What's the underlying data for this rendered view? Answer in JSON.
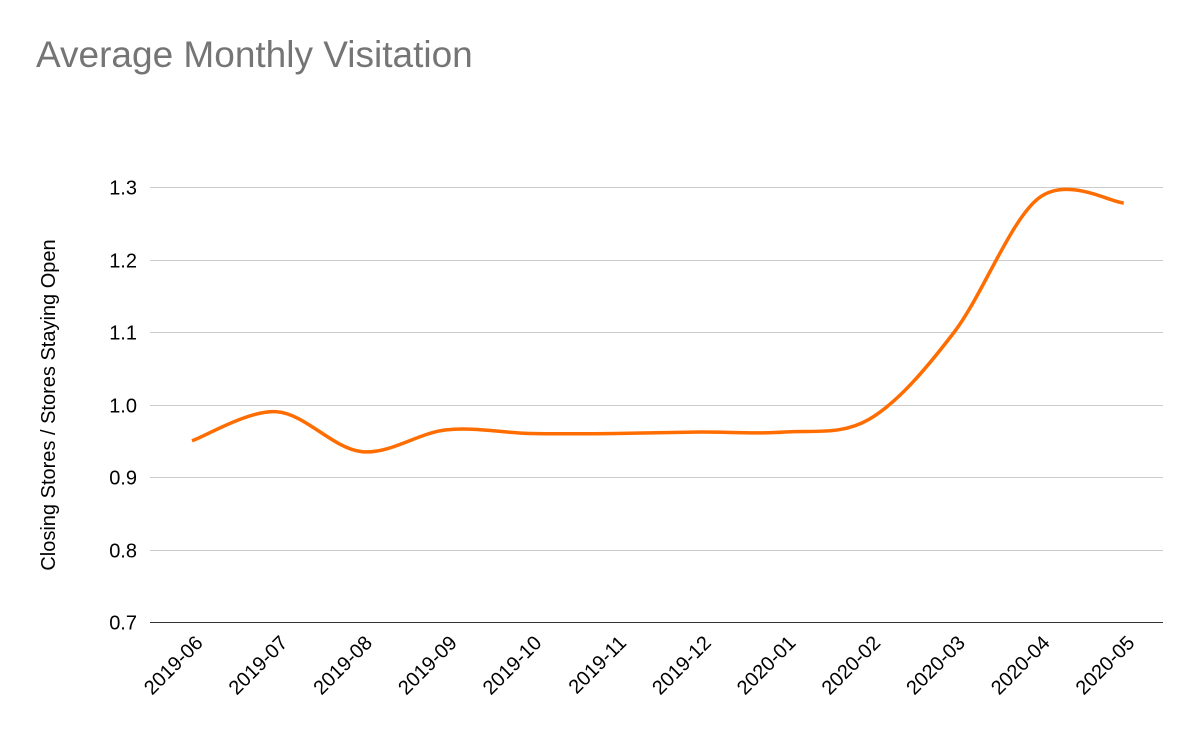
{
  "chart_data": {
    "type": "line",
    "title": "Average Monthly Visitation",
    "xlabel": "",
    "ylabel": "Closing Stores / Stores Staying Open",
    "ylim": [
      0.7,
      1.3
    ],
    "yticks": [
      "0.7",
      "0.8",
      "0.9",
      "1.0",
      "1.1",
      "1.2",
      "1.3"
    ],
    "categories": [
      "2019-06",
      "2019-07",
      "2019-08",
      "2019-09",
      "2019-10",
      "2019-11",
      "2019-12",
      "2020-01",
      "2020-02",
      "2020-03",
      "2020-04",
      "2020-05"
    ],
    "series": [
      {
        "name": "Closing Stores / Stores Staying Open",
        "color": "#ff6d01",
        "values": [
          0.95,
          0.99,
          0.935,
          0.965,
          0.96,
          0.96,
          0.962,
          0.962,
          0.98,
          1.1,
          1.285,
          1.278
        ]
      }
    ],
    "grid": true,
    "legend": "none"
  }
}
